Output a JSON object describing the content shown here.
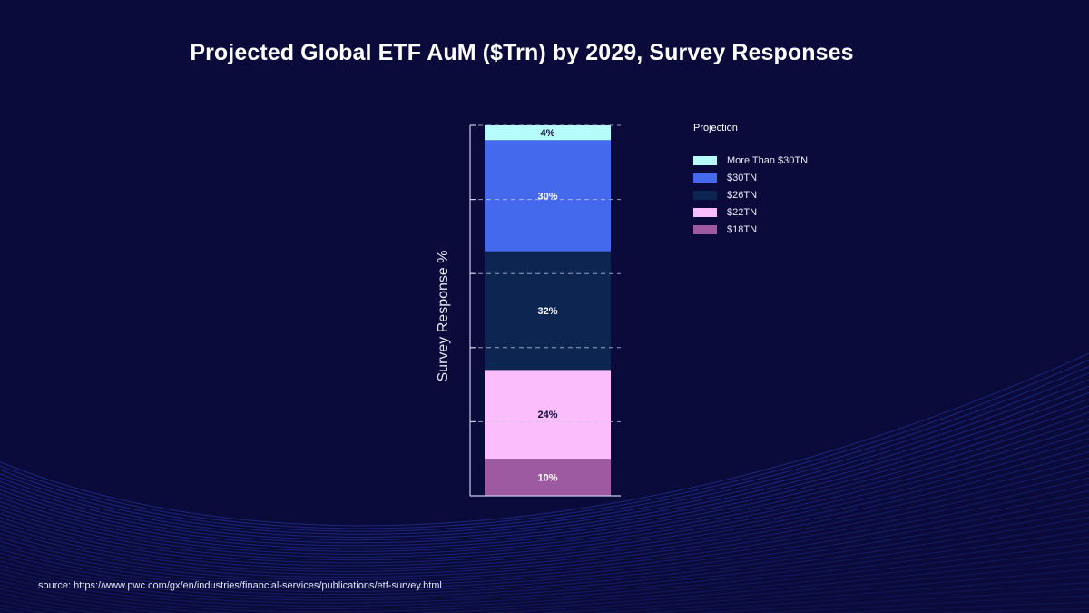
{
  "title": "Projected Global ETF AuM ($Trn) by 2029, Survey Responses",
  "source": "source: https://www.pwc.com/gx/en/industries/financial-services/publications/etf-survey.html",
  "colors": {
    "background": "#0a0b3a",
    "more_than_30tn": "#b7fcfc",
    "30tn": "#4569ec",
    "26tn": "#0c2551",
    "22tn": "#fbbdfb",
    "18tn": "#9e5aa0"
  },
  "chart_data": {
    "type": "bar",
    "stacked": true,
    "title": "Projected Global ETF AuM ($Trn) by 2029, Survey Responses",
    "xlabel": "",
    "ylabel": "Survey Response %",
    "ylim": [
      0,
      100
    ],
    "grid": true,
    "categories": [
      ""
    ],
    "legend_title": "Projection",
    "legend_position": "right",
    "series": [
      {
        "name": "More Than $30TN",
        "values": [
          4
        ],
        "label": "4%",
        "color": "#b7fcfc",
        "label_color": "#0a0b3a"
      },
      {
        "name": "$30TN",
        "values": [
          30
        ],
        "label": "30%",
        "color": "#4569ec",
        "label_color": "#ffffff"
      },
      {
        "name": "$26TN",
        "values": [
          32
        ],
        "label": "32%",
        "color": "#0c2551",
        "label_color": "#ffffff"
      },
      {
        "name": "$22TN",
        "values": [
          24
        ],
        "label": "24%",
        "color": "#fbbdfb",
        "label_color": "#0a0b3a"
      },
      {
        "name": "$18TN",
        "values": [
          10
        ],
        "label": "10%",
        "color": "#9e5aa0",
        "label_color": "#ffffff"
      }
    ]
  }
}
